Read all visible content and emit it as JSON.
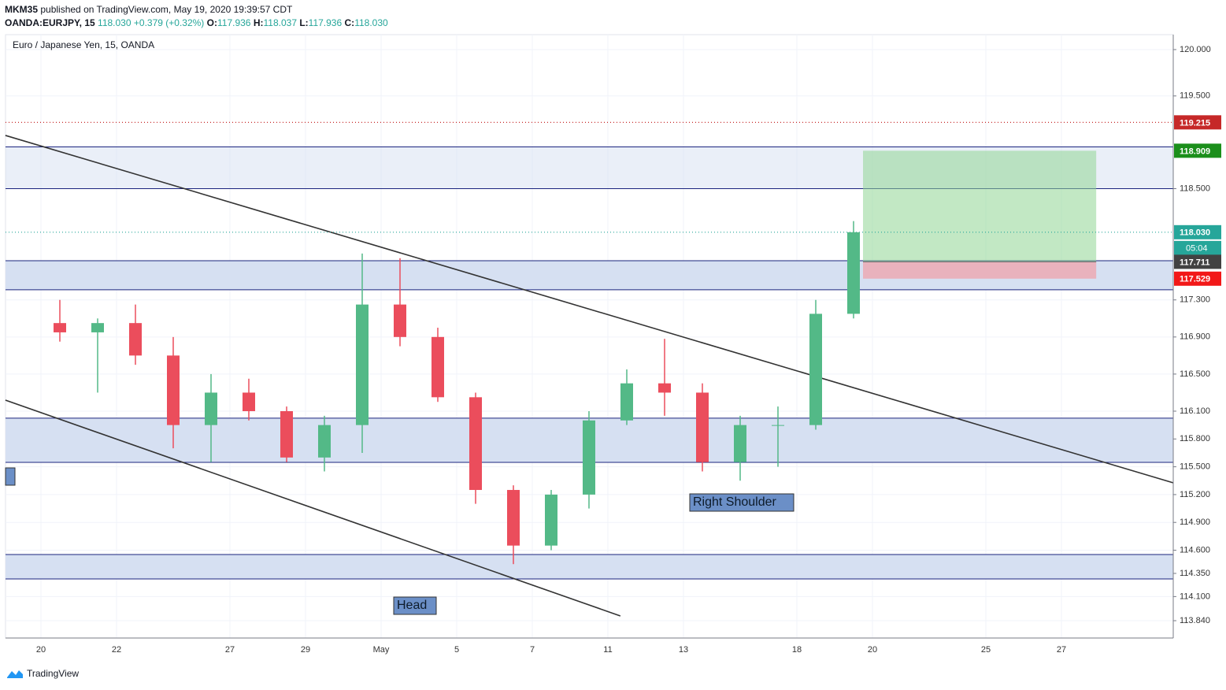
{
  "header": {
    "author": "MKM35",
    "published": "published on TradingView.com, May 19, 2020 19:39:57 CDT",
    "symbol": "OANDA:EURJPY, 15",
    "last": "118.030",
    "change": "+0.379 (+0.32%)",
    "open_label": "O:",
    "open": "117.936",
    "high_label": "H:",
    "high": "118.037",
    "low_label": "L:",
    "low": "117.936",
    "close_label": "C:",
    "close": "118.030"
  },
  "footer": {
    "brand": "TradingView"
  },
  "chart_data": {
    "type": "candlestick",
    "title": "Euro / Japanese Yen, 15, OANDA",
    "categories": [
      "20",
      null,
      "22",
      null,
      null,
      "27",
      null,
      "29",
      null,
      "May",
      null,
      "5",
      null,
      "7",
      null,
      "11",
      null,
      "13",
      null,
      null,
      "18",
      null,
      "20",
      null,
      null,
      "25",
      null,
      "27",
      null,
      null
    ],
    "open": [
      117.05,
      116.95,
      117.05,
      116.7,
      115.95,
      116.3,
      116.1,
      115.6,
      115.95,
      117.25,
      116.9,
      116.25,
      115.25,
      114.65,
      115.2,
      116.0,
      116.4,
      116.3,
      115.55,
      115.95,
      115.95,
      117.15,
      null,
      null,
      null,
      null,
      null,
      null,
      null,
      null
    ],
    "high": [
      117.3,
      117.1,
      117.25,
      116.9,
      116.5,
      116.45,
      116.15,
      116.05,
      117.8,
      117.75,
      117.0,
      116.3,
      115.3,
      115.25,
      116.1,
      116.55,
      116.88,
      116.4,
      116.05,
      116.15,
      117.3,
      118.15,
      null,
      null,
      null,
      null,
      null,
      null,
      null,
      null
    ],
    "low": [
      116.85,
      116.3,
      116.6,
      115.7,
      115.55,
      116.0,
      115.55,
      115.45,
      115.65,
      116.8,
      116.2,
      115.1,
      114.45,
      114.6,
      115.05,
      115.95,
      116.05,
      115.45,
      115.35,
      115.5,
      115.9,
      117.1,
      null,
      null,
      null,
      null,
      null,
      null,
      null,
      null
    ],
    "close": [
      116.95,
      117.05,
      116.7,
      115.95,
      116.3,
      116.1,
      115.6,
      115.95,
      117.25,
      116.9,
      116.25,
      115.25,
      114.65,
      115.2,
      116.0,
      116.4,
      116.3,
      115.55,
      115.95,
      115.95,
      117.15,
      118.03,
      null,
      null,
      null,
      null,
      null,
      null,
      null,
      null
    ],
    "up_color": "#53b987",
    "down_color": "#eb4d5c",
    "ylim": [
      113.653,
      120.161
    ],
    "yticks": [
      {
        "value": 120,
        "label": "120.000"
      },
      {
        "value": 119.5,
        "label": "119.500"
      },
      {
        "value": 118.5,
        "label": "118.500"
      },
      {
        "value": 117.3,
        "label": "117.300"
      },
      {
        "value": 116.9,
        "label": "116.900"
      },
      {
        "value": 116.5,
        "label": "116.500"
      },
      {
        "value": 116.1,
        "label": "116.100"
      },
      {
        "value": 115.8,
        "label": "115.800"
      },
      {
        "value": 115.5,
        "label": "115.500"
      },
      {
        "value": 115.2,
        "label": "115.200"
      },
      {
        "value": 114.9,
        "label": "114.900"
      },
      {
        "value": 114.6,
        "label": "114.600"
      },
      {
        "value": 114.35,
        "label": "114.350"
      },
      {
        "value": 114.1,
        "label": "114.100"
      },
      {
        "value": 113.84,
        "label": "113.840"
      }
    ],
    "grid": true,
    "zones": [
      [
        118.95,
        118.5
      ],
      [
        117.723,
        117.409
      ],
      [
        116.024,
        115.548
      ],
      [
        114.554,
        114.29
      ]
    ],
    "zone_color": "#d6e0f2",
    "trendlines": [
      {
        "x": [
          -1.44,
          29.46
        ],
        "y": [
          119.074,
          115.327
        ]
      },
      {
        "x": [
          -1.44,
          14.83
        ],
        "y": [
          116.219,
          113.891
        ]
      }
    ],
    "price_tags": [
      {
        "value": 119.215,
        "label": "119.215",
        "color": "#c62828",
        "line": "dotted"
      },
      {
        "value": 118.909,
        "label": "118.909",
        "color": "#1b8f1b"
      },
      {
        "value": 118.03,
        "label": "118.030",
        "color": "#26a69a",
        "line": "dotted",
        "countdown": "05:04"
      },
      {
        "value": 117.711,
        "label": "117.711",
        "color": "#424242"
      },
      {
        "value": 117.529,
        "label": "117.529",
        "color": "#f21818"
      }
    ],
    "position": {
      "x": [
        21.25,
        27.42
      ],
      "target": 118.909,
      "entry": 117.711,
      "stop": 117.529
    },
    "annotations": [
      "Head",
      "Right Shoulder"
    ]
  }
}
